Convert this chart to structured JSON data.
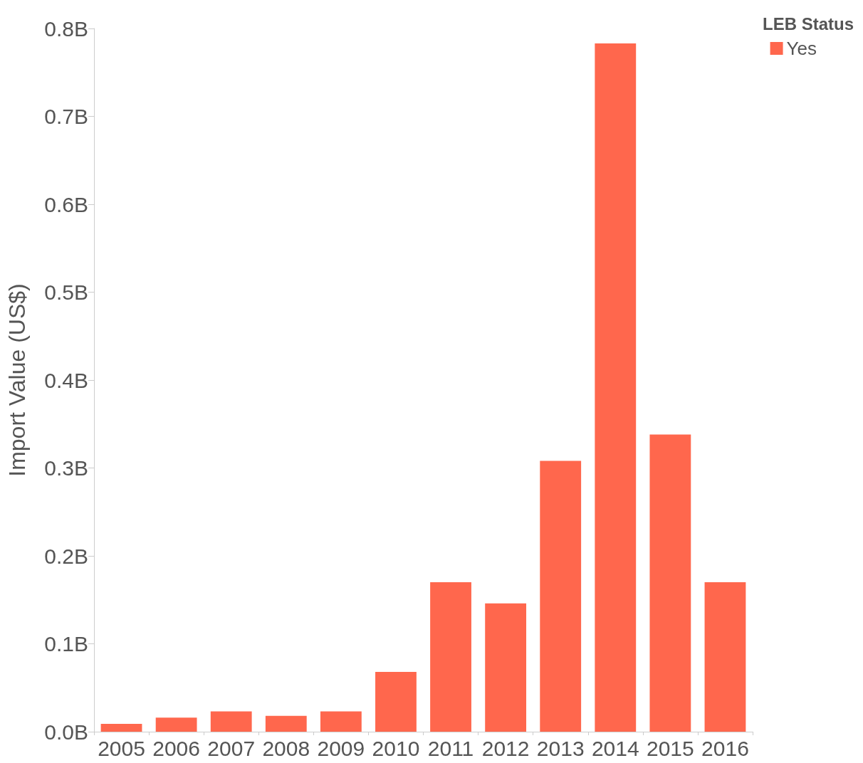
{
  "chart_data": {
    "type": "bar",
    "ylabel": "Import Value (US$)",
    "legend_title": "LEB Status",
    "categories": [
      "2005",
      "2006",
      "2007",
      "2008",
      "2009",
      "2010",
      "2011",
      "2012",
      "2013",
      "2014",
      "2015",
      "2016"
    ],
    "series": [
      {
        "name": "Yes",
        "color": "#ff674d",
        "values": [
          0.009,
          0.016,
          0.023,
          0.018,
          0.023,
          0.068,
          0.17,
          0.146,
          0.308,
          0.783,
          0.338,
          0.17
        ]
      }
    ],
    "ylim": [
      0,
      0.8
    ],
    "yticks": [
      {
        "value": 0,
        "label": "0.0B"
      },
      {
        "value": 0.1,
        "label": "0.1B"
      },
      {
        "value": 0.2,
        "label": "0.2B"
      },
      {
        "value": 0.3,
        "label": "0.3B"
      },
      {
        "value": 0.4,
        "label": "0.4B"
      },
      {
        "value": 0.5,
        "label": "0.5B"
      },
      {
        "value": 0.6,
        "label": "0.6B"
      },
      {
        "value": 0.7,
        "label": "0.7B"
      },
      {
        "value": 0.8,
        "label": "0.8B"
      }
    ],
    "grid": false,
    "legend": "top right"
  }
}
